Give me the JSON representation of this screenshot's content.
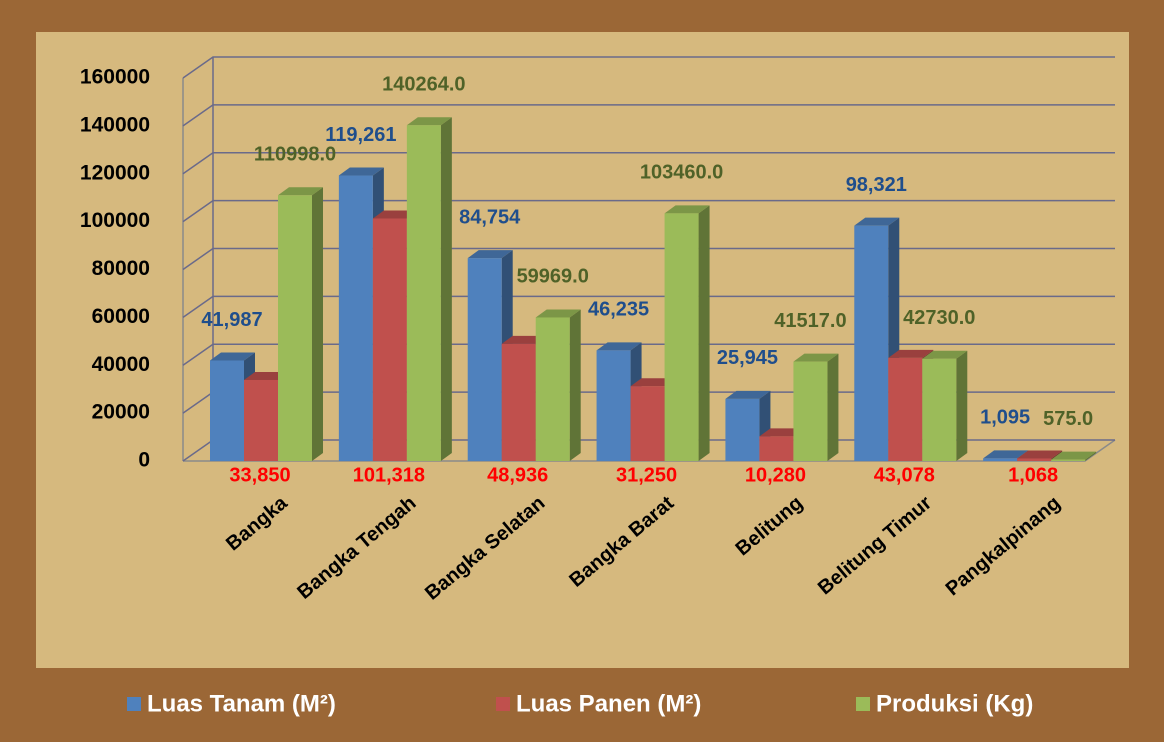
{
  "chart_data": {
    "type": "bar3d",
    "categories": [
      "Bangka",
      "Bangka Tengah",
      "Bangka Selatan",
      "Bangka Barat",
      "Belitung",
      "Belitung Timur",
      "Pangkalpinang"
    ],
    "series": [
      {
        "name": "Luas Tanam (M²)",
        "color": "#4f81bd",
        "label_color": "#1f4e8c",
        "values": [
          41987,
          119261,
          84754,
          46235,
          25945,
          98321,
          1095
        ],
        "value_labels": [
          "41,987",
          "119,261",
          "84,754",
          "46,235",
          "25,945",
          "98,321",
          "1,095"
        ]
      },
      {
        "name": "Luas Panen (M²)",
        "color": "#c0504d",
        "label_color": "#ff0000",
        "values": [
          33850,
          101318,
          48936,
          31250,
          10280,
          43078,
          1068
        ],
        "value_labels": [
          "33,850",
          "101,318",
          "48,936",
          "31,250",
          "10,280",
          "43,078",
          "1,068"
        ]
      },
      {
        "name": "Produksi (Kg)",
        "color": "#9bbb59",
        "label_color": "#4f6228",
        "values": [
          110998,
          140264,
          59969,
          103460,
          41517,
          42730,
          575
        ],
        "value_labels": [
          "110998.0",
          "140264.0",
          "59969.0",
          "103460.0",
          "41517.0",
          "42730.0",
          "575.0"
        ]
      }
    ],
    "ylim": [
      0,
      160000
    ],
    "yticks": [
      0,
      20000,
      40000,
      60000,
      80000,
      100000,
      120000,
      140000,
      160000
    ],
    "grid": true,
    "legend": "bottom"
  }
}
